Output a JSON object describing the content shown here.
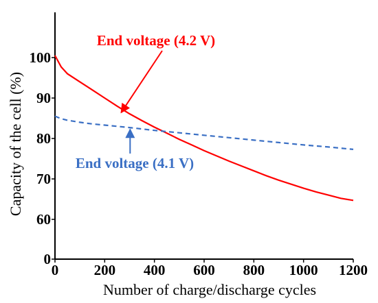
{
  "chart_data": {
    "type": "line",
    "xlabel": "Number of charge/discharge cycles",
    "ylabel": "Capacity of the cell (%)",
    "xlim": [
      0,
      1200
    ],
    "ylim": [
      0,
      110
    ],
    "y_axis_break": [
      0,
      60
    ],
    "x_ticks": [
      0,
      200,
      400,
      600,
      800,
      1000,
      1200
    ],
    "x_tick_labels": [
      "0",
      "200",
      "400",
      "600",
      "800",
      "1000",
      "1200"
    ],
    "y_ticks": [
      0,
      60,
      70,
      80,
      90,
      100
    ],
    "y_tick_labels": [
      "0",
      "60",
      "70",
      "80",
      "90",
      "100"
    ],
    "grid": false,
    "series": [
      {
        "name": "End voltage (4.2 V)",
        "color": "#ff0000",
        "style": "solid",
        "x": [
          0,
          25,
          50,
          100,
          150,
          200,
          250,
          300,
          350,
          400,
          450,
          500,
          550,
          600,
          650,
          700,
          750,
          800,
          850,
          900,
          950,
          1000,
          1050,
          1100,
          1150,
          1200
        ],
        "y": [
          100.5,
          97.7,
          96.0,
          94.0,
          92.0,
          90.0,
          88.0,
          86.1,
          84.4,
          82.8,
          81.3,
          79.8,
          78.4,
          77.0,
          75.7,
          74.4,
          73.2,
          72.0,
          70.8,
          69.7,
          68.7,
          67.7,
          66.8,
          66.0,
          65.2,
          64.7
        ]
      },
      {
        "name": "End voltage (4.1 V)",
        "color": "#3a6fc4",
        "style": "dashed",
        "x": [
          0,
          25,
          50,
          100,
          150,
          200,
          300,
          400,
          500,
          600,
          700,
          800,
          900,
          1000,
          1100,
          1200
        ],
        "y": [
          85.5,
          84.9,
          84.5,
          84.0,
          83.6,
          83.3,
          82.7,
          82.0,
          81.4,
          80.8,
          80.2,
          79.6,
          79.0,
          78.4,
          77.9,
          77.3
        ]
      }
    ],
    "annotations": [
      {
        "text": "End voltage (4.2 V)",
        "series": 0,
        "point_x": 305,
        "point_y": 85.9,
        "color": "#ff0000"
      },
      {
        "text": "End voltage (4.1 V)",
        "series": 1,
        "point_x": 305,
        "point_y": 82.6,
        "color": "#3a6fc4"
      }
    ]
  }
}
